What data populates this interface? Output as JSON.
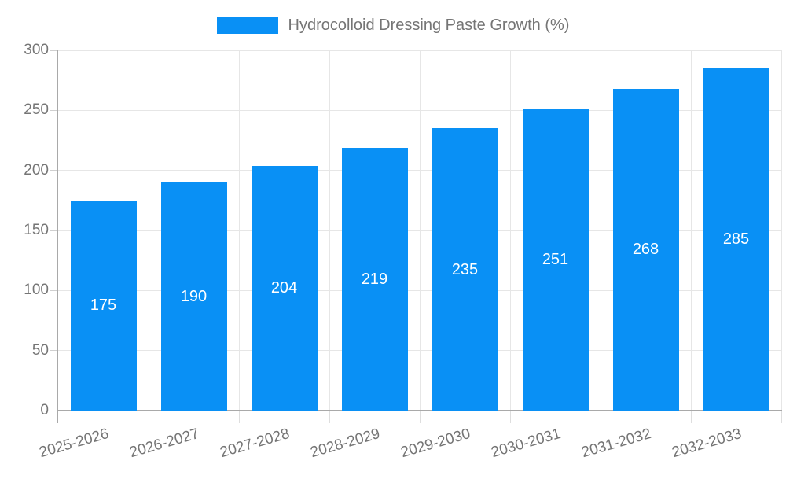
{
  "legend": {
    "series_label": "Hydrocolloid Dressing Paste Growth (%)"
  },
  "chart_data": {
    "type": "bar",
    "title": "",
    "categories": [
      "2025-2026",
      "2026-2027",
      "2027-2028",
      "2028-2029",
      "2029-2030",
      "2030-2031",
      "2031-2032",
      "2032-2033"
    ],
    "series": [
      {
        "name": "Hydrocolloid Dressing Paste Growth (%)",
        "values": [
          175,
          190,
          204,
          219,
          235,
          251,
          268,
          285
        ]
      }
    ],
    "xlabel": "",
    "ylabel": "",
    "ylim": [
      0,
      300
    ],
    "yticks": [
      0,
      50,
      100,
      150,
      200,
      250,
      300
    ],
    "grid": true,
    "legend_position": "top-center",
    "bar_labels_shown": true,
    "colors": {
      "bar": "#0990f5",
      "bar_label": "#ffffff",
      "axis_text": "#757575",
      "grid_line": "#e6e6e6",
      "axis_line": "#a9a9a9"
    }
  }
}
